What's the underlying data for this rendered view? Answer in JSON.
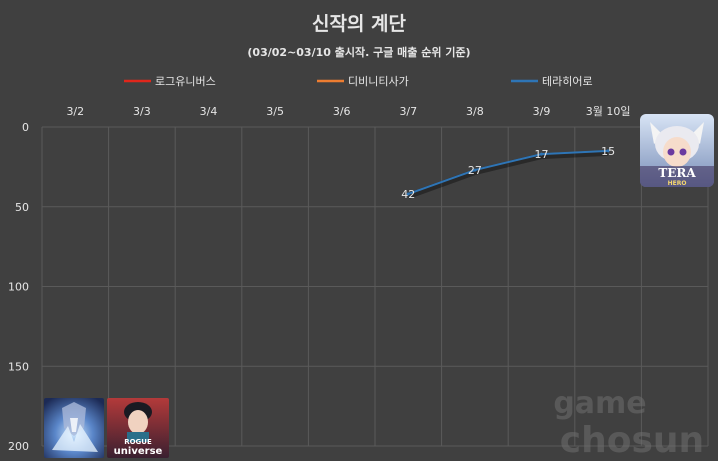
{
  "chart_data": {
    "type": "line",
    "title": "신작의 계단",
    "subtitle": "(03/02~03/10 출시작. 구글 매출 순위 기준)",
    "categories": [
      "3/2",
      "3/3",
      "3/4",
      "3/5",
      "3/6",
      "3/7",
      "3/8",
      "3/9",
      "3월 10일"
    ],
    "ylim": [
      0,
      200
    ],
    "y_reversed": true,
    "yticks": [
      "0",
      "50",
      "100",
      "150",
      "200"
    ],
    "grid": true,
    "legend_position": "top",
    "series": [
      {
        "name": "로그유니버스",
        "color": "#e0261b",
        "values": [
          null,
          null,
          null,
          null,
          null,
          null,
          null,
          null,
          null
        ]
      },
      {
        "name": "디비니티사가",
        "color": "#ed7d31",
        "values": [
          null,
          null,
          null,
          null,
          null,
          null,
          null,
          null,
          null
        ]
      },
      {
        "name": "테라히어로",
        "color": "#2e75b6",
        "values": [
          null,
          null,
          null,
          null,
          null,
          42,
          27,
          17,
          15
        ]
      }
    ]
  },
  "watermark": {
    "line1": "game",
    "line2": "chosun"
  },
  "thumbnails": [
    {
      "icon": "divinity-saga-game-icon"
    },
    {
      "icon": "rogue-universe-game-icon",
      "text_line1": "ROGUE",
      "text_line2": "universe"
    },
    {
      "icon": "tera-hero-game-icon",
      "text_line1": "TERA",
      "text_line2": "HERO"
    }
  ]
}
